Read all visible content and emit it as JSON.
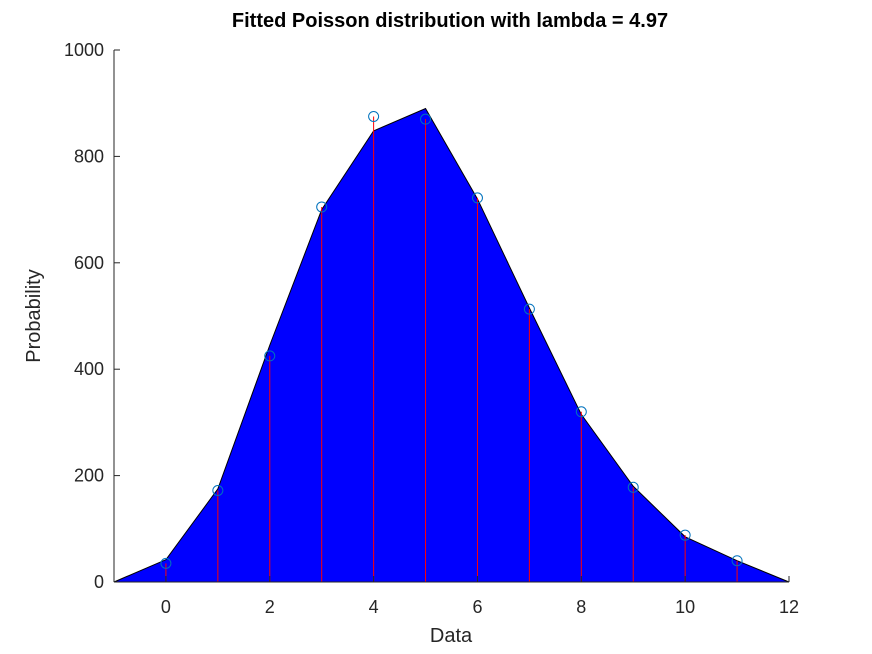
{
  "chart_data": {
    "type": "area",
    "title": "Fitted Poisson distribution with lambda = 4.97",
    "xlabel": "Data",
    "ylabel": "Probability",
    "xlim": [
      -1,
      12
    ],
    "ylim": [
      0,
      1000
    ],
    "xticks": [
      0,
      2,
      4,
      6,
      8,
      10,
      12
    ],
    "yticks": [
      0,
      200,
      400,
      600,
      800,
      1000
    ],
    "grid": false,
    "legend": "none",
    "fitted_area": {
      "x": [
        -1,
        0,
        1,
        2,
        3,
        4,
        5,
        6,
        7,
        8,
        9,
        10,
        11,
        12
      ],
      "y": [
        0,
        42,
        175,
        445,
        700,
        848,
        890,
        720,
        515,
        315,
        180,
        85,
        40,
        0
      ],
      "color": "#0000ff"
    },
    "observed": {
      "x": [
        0,
        1,
        2,
        3,
        4,
        5,
        6,
        7,
        8,
        9,
        10,
        11
      ],
      "y": [
        35,
        172,
        425,
        705,
        875,
        870,
        722,
        513,
        320,
        178,
        88,
        40
      ],
      "marker_color": "#0072bd",
      "stem_color": "#ff0000"
    }
  }
}
